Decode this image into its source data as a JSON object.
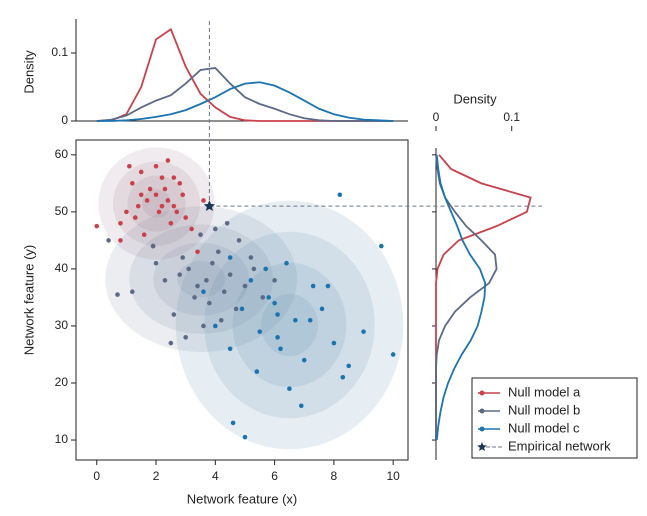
{
  "chart_data": [
    {
      "type": "scatter",
      "xlabel": "Network feature (x)",
      "ylabel": "Network feature (y)",
      "xlim": [
        -0.7,
        10.5
      ],
      "ylim": [
        6.5,
        62.6
      ],
      "xticks": [
        0,
        2,
        4,
        6,
        8,
        10
      ],
      "yticks": [
        10,
        20,
        30,
        40,
        50,
        60
      ],
      "legend": "lower right",
      "series": [
        {
          "name": "Null model a",
          "color": "#c8414b",
          "x": [
            1.2,
            1.5,
            1.8,
            2.0,
            2.2,
            2.4,
            2.6,
            1.0,
            1.3,
            1.7,
            2.1,
            2.5,
            2.9,
            3.2,
            1.6,
            2.3,
            2.8,
            1.1,
            0.8,
            1.9,
            2.7,
            3.4,
            1.4,
            2.0,
            2.4,
            3.0,
            0.0,
            0.8,
            1.5,
            2.2,
            3.6,
            2.6
          ],
          "y": [
            55,
            57,
            54,
            53,
            56,
            52,
            51,
            50,
            49,
            52,
            50,
            48,
            53,
            47,
            46,
            54,
            55,
            58,
            48,
            44,
            50,
            43,
            51,
            58,
            59,
            49,
            47.5,
            45,
            53,
            51,
            52,
            56
          ]
        },
        {
          "name": "Null model b",
          "color": "#5b6a87",
          "x": [
            0.4,
            0.7,
            1.2,
            1.9,
            2.3,
            2.6,
            2.9,
            3.1,
            3.3,
            3.5,
            3.7,
            3.9,
            4.1,
            4.3,
            4.5,
            4.7,
            5.0,
            5.3,
            5.6,
            3.0,
            3.6,
            4.0,
            4.4,
            2.0,
            2.8,
            3.4,
            4.8,
            5.2,
            6.0,
            3.8,
            4.2,
            2.5
          ],
          "y": [
            45,
            35.5,
            36,
            44,
            38,
            32,
            42,
            40,
            35,
            46,
            38,
            41,
            43,
            36,
            39,
            33,
            37,
            40,
            35,
            28,
            30,
            47,
            48,
            41,
            39,
            37,
            45,
            42,
            38,
            34,
            31,
            27
          ]
        },
        {
          "name": "Null model c",
          "color": "#1a74b0",
          "x": [
            3.6,
            4.0,
            4.5,
            4.9,
            5.2,
            5.5,
            5.8,
            6.1,
            6.4,
            6.7,
            7.0,
            7.3,
            7.6,
            8.0,
            8.5,
            9.0,
            9.6,
            10.0,
            4.6,
            5.0,
            5.4,
            6.0,
            6.5,
            7.2,
            7.8,
            8.3,
            5.7,
            6.2,
            6.9,
            4.5,
            6.1,
            8.2
          ],
          "y": [
            36,
            30,
            26,
            33,
            38,
            29,
            35,
            28,
            41,
            31,
            24,
            37,
            33,
            27,
            23,
            29,
            44,
            25,
            13,
            10.5,
            22,
            34,
            19,
            31,
            37,
            21,
            40,
            26,
            16,
            42,
            32,
            53
          ]
        }
      ],
      "empirical": {
        "name": "Empirical network",
        "x": 3.8,
        "y": 51,
        "color": "#1d3557"
      }
    },
    {
      "type": "density-top",
      "ylabel": "Density",
      "ylim": [
        0,
        0.15
      ],
      "yticks": [
        0,
        0.1
      ],
      "x": [
        0,
        0.5,
        1,
        1.5,
        2,
        2.5,
        3,
        3.5,
        4,
        4.5,
        5,
        5.5,
        6,
        6.5,
        7,
        7.5,
        8,
        8.5,
        9,
        9.5,
        10
      ],
      "series": [
        {
          "color": "#c8414b",
          "values": [
            0,
            0.001,
            0.01,
            0.05,
            0.12,
            0.135,
            0.08,
            0.04,
            0.02,
            0.006,
            0.001,
            0,
            0,
            0,
            0,
            0,
            0,
            0,
            0,
            0,
            0
          ]
        },
        {
          "color": "#5b6a87",
          "values": [
            0,
            0.002,
            0.008,
            0.02,
            0.03,
            0.038,
            0.055,
            0.075,
            0.078,
            0.055,
            0.035,
            0.025,
            0.018,
            0.01,
            0.004,
            0.001,
            0,
            0,
            0,
            0,
            0
          ]
        },
        {
          "color": "#1a74b0",
          "values": [
            0,
            0,
            0.001,
            0.003,
            0.006,
            0.01,
            0.016,
            0.025,
            0.035,
            0.047,
            0.055,
            0.057,
            0.052,
            0.042,
            0.03,
            0.018,
            0.01,
            0.005,
            0.002,
            0.001,
            0
          ]
        }
      ]
    },
    {
      "type": "density-right",
      "xlabel": "Density",
      "xlim": [
        0,
        0.14
      ],
      "xticks": [
        0,
        0.1
      ],
      "y": [
        10,
        12.5,
        15,
        17.5,
        20,
        22.5,
        25,
        27.5,
        30,
        32.5,
        35,
        37.5,
        40,
        42.5,
        45,
        47.5,
        50,
        52.5,
        55,
        57.5,
        60
      ],
      "series": [
        {
          "color": "#c8414b",
          "values": [
            0,
            0,
            0,
            0,
            0,
            0,
            0,
            0,
            0,
            0,
            0,
            0,
            0.002,
            0.01,
            0.03,
            0.08,
            0.12,
            0.125,
            0.06,
            0.02,
            0.004
          ]
        },
        {
          "color": "#5b6a87",
          "values": [
            0,
            0,
            0,
            0,
            0,
            0,
            0.001,
            0.004,
            0.012,
            0.025,
            0.045,
            0.07,
            0.08,
            0.078,
            0.06,
            0.04,
            0.025,
            0.012,
            0.005,
            0.002,
            0
          ]
        },
        {
          "color": "#1a74b0",
          "values": [
            0.001,
            0.003,
            0.006,
            0.01,
            0.016,
            0.024,
            0.034,
            0.046,
            0.055,
            0.06,
            0.064,
            0.065,
            0.058,
            0.045,
            0.035,
            0.028,
            0.02,
            0.012,
            0.006,
            0.003,
            0.001
          ]
        }
      ]
    }
  ]
}
